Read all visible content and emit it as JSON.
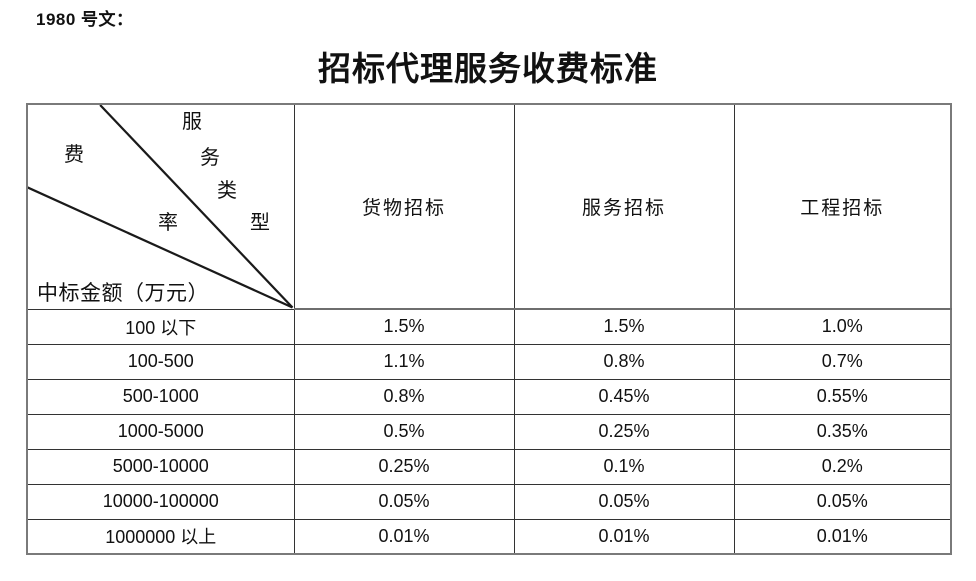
{
  "doc_label": "1980 号文：",
  "title": "招标代理服务收费标准",
  "table": {
    "corner": {
      "chars": {
        "fei": "费",
        "lv": "率",
        "fu": "服",
        "wu": "务",
        "lei": "类",
        "xing": "型"
      },
      "row_axis_label": "中标金额（万元）",
      "col_axis_label_combined": "费率 / 服务类型"
    },
    "columns": [
      "货物招标",
      "服务招标",
      "工程招标"
    ],
    "rows": [
      {
        "range": "100 以下",
        "values": [
          "1.5%",
          "1.5%",
          "1.0%"
        ]
      },
      {
        "range": "100-500",
        "values": [
          "1.1%",
          "0.8%",
          "0.7%"
        ]
      },
      {
        "range": "500-1000",
        "values": [
          "0.8%",
          "0.45%",
          "0.55%"
        ]
      },
      {
        "range": "1000-5000",
        "values": [
          "0.5%",
          "0.25%",
          "0.35%"
        ]
      },
      {
        "range": "5000-10000",
        "values": [
          "0.25%",
          "0.1%",
          "0.2%"
        ]
      },
      {
        "range": "10000-100000",
        "values": [
          "0.05%",
          "0.05%",
          "0.05%"
        ]
      },
      {
        "range": "1000000 以上",
        "values": [
          "0.01%",
          "0.01%",
          "0.01%"
        ]
      }
    ]
  },
  "colors": {
    "background": "#ffffff",
    "text": "#111111",
    "border_inner": "#333333",
    "border_outer": "#7a7a7a",
    "diagonal_line": "#1a1a1a"
  }
}
